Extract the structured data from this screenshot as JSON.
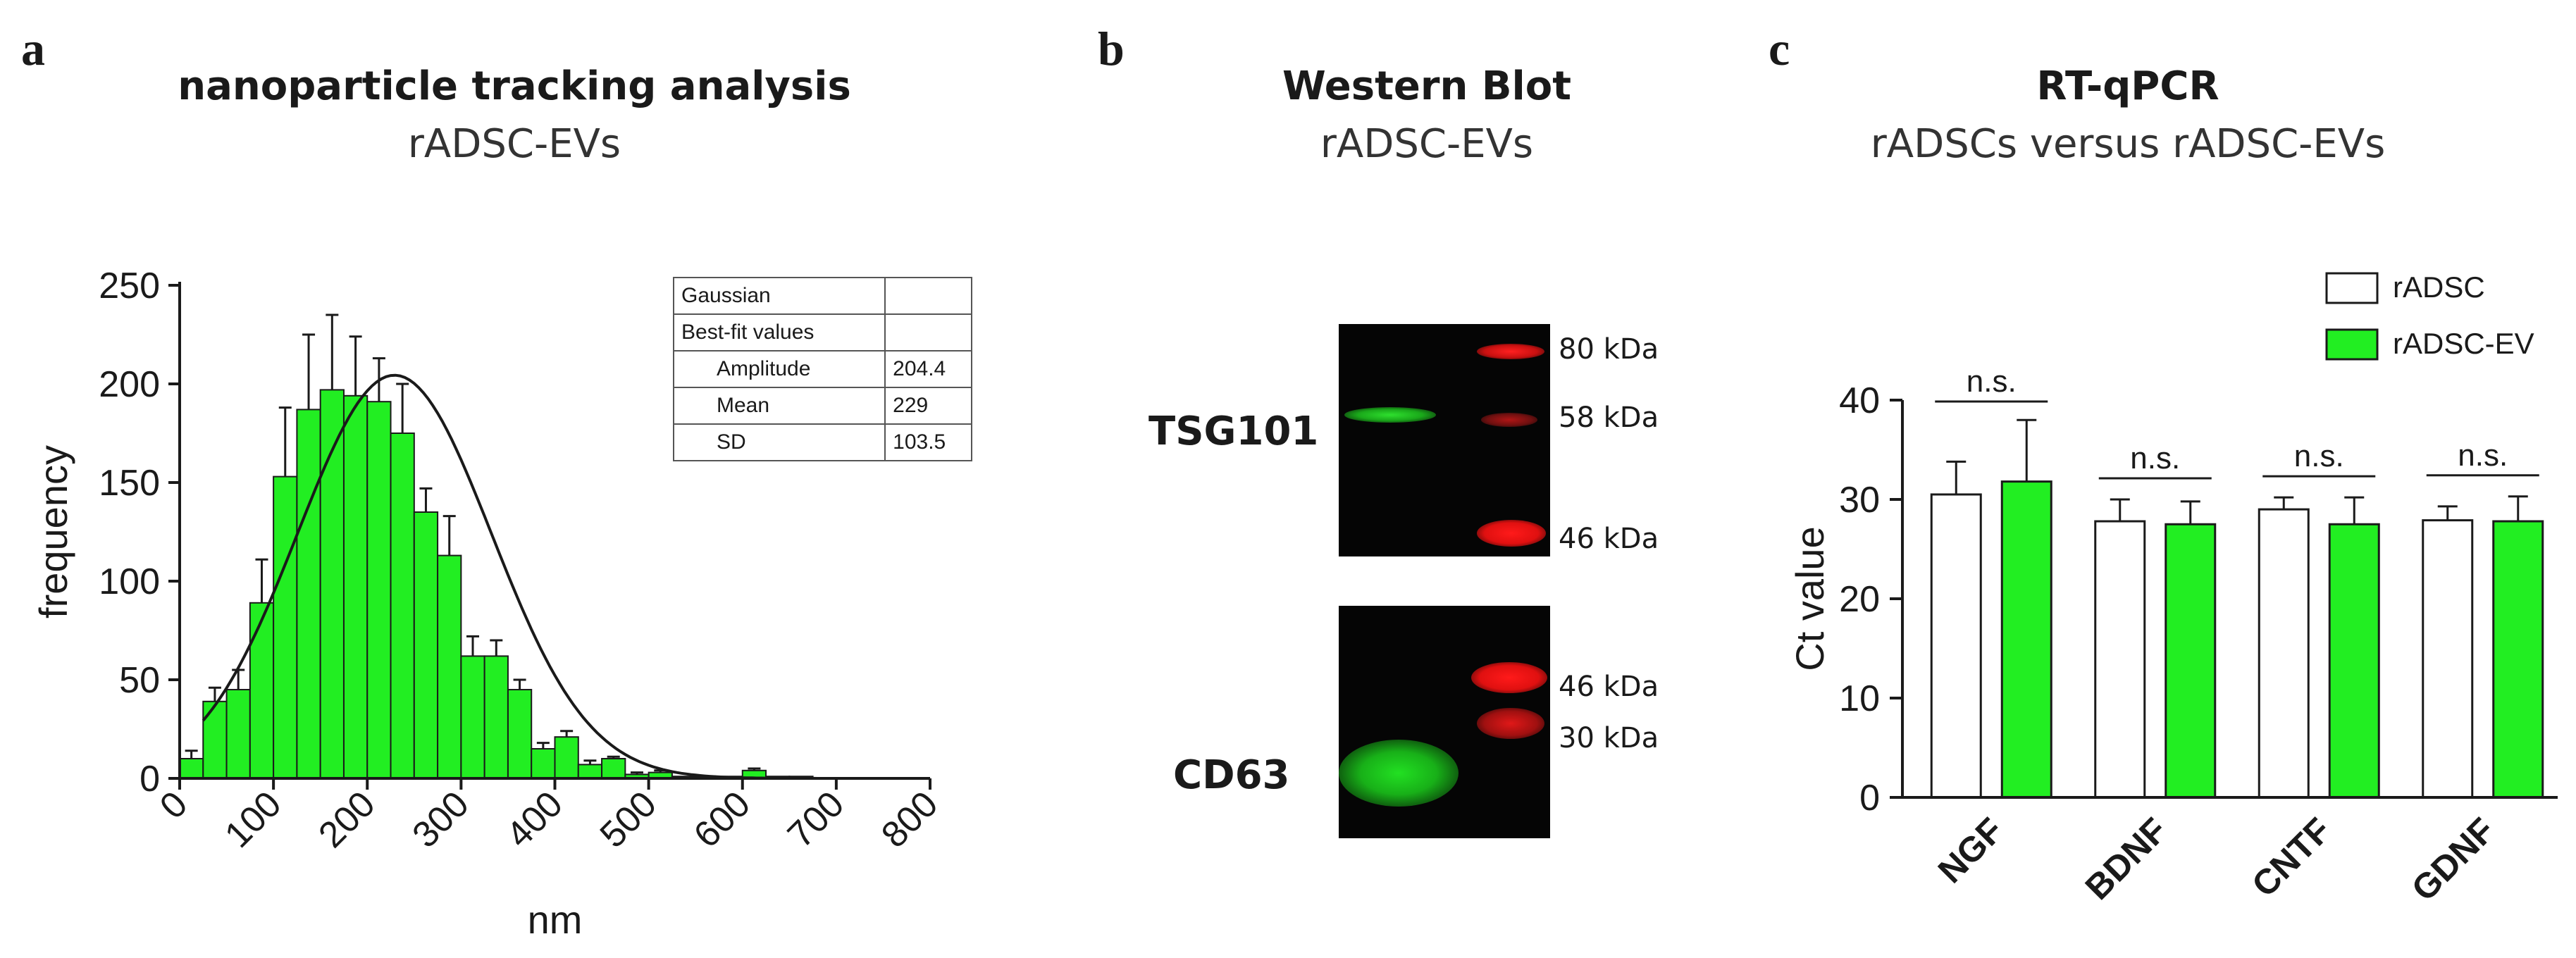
{
  "panel_a": {
    "letter": "a",
    "title": "nanoparticle tracking analysis",
    "subtitle": "rADSC-EVs",
    "fit_table": {
      "rows": [
        [
          "Gaussian",
          ""
        ],
        [
          "Best-fit values",
          ""
        ],
        [
          "Amplitude",
          "204.4"
        ],
        [
          "Mean",
          "229"
        ],
        [
          "SD",
          "103.5"
        ]
      ]
    },
    "colors": {
      "bar": "#22ee22",
      "curve": "#1a1a1a"
    }
  },
  "panel_b": {
    "letter": "b",
    "title": "Western Blot",
    "subtitle": "rADSC-EVs",
    "blots": [
      {
        "protein": "TSG101",
        "markers": [
          "80 kDa",
          "58 kDa",
          "46 kDa"
        ]
      },
      {
        "protein": "CD63",
        "markers": [
          "46 kDa",
          "30 kDa"
        ]
      }
    ],
    "colors": {
      "green": "#22dd22",
      "red": "#ff1a1a"
    }
  },
  "panel_c": {
    "letter": "c",
    "title": "RT-qPCR",
    "subtitle": "rADSCs versus rADSC-EVs",
    "significance": [
      "n.s.",
      "n.s.",
      "n.s.",
      "n.s."
    ],
    "colors": {
      "rADSC": "#ffffff",
      "rADSC-EV": "#22ee22"
    }
  },
  "chart_data": [
    {
      "type": "bar",
      "title": "nanoparticle tracking analysis",
      "subtitle": "rADSC-EVs",
      "xlabel": "nm",
      "ylabel": "frequency",
      "xlim": [
        0,
        800
      ],
      "ylim": [
        0,
        250
      ],
      "xticks": [
        "0",
        "100",
        "200",
        "300",
        "400",
        "500",
        "600",
        "700",
        "800"
      ],
      "yticks": [
        "0",
        "50",
        "100",
        "150",
        "200",
        "250"
      ],
      "bin_width": 25,
      "x": [
        12.5,
        37.5,
        62.5,
        87.5,
        112.5,
        137.5,
        162.5,
        187.5,
        212.5,
        237.5,
        262.5,
        287.5,
        312.5,
        337.5,
        362.5,
        387.5,
        412.5,
        437.5,
        462.5,
        487.5,
        512.5,
        537.5,
        562.5,
        587.5,
        612.5,
        637.5,
        662.5,
        687.5,
        712.5,
        737.5,
        762.5
      ],
      "values": [
        10,
        39,
        45,
        89,
        153,
        187,
        197,
        194,
        191,
        175,
        135,
        113,
        62,
        62,
        45,
        15,
        21,
        7,
        10,
        2,
        3,
        1,
        1,
        1,
        4,
        1,
        1,
        0,
        0,
        0,
        0
      ],
      "errors": [
        4,
        7,
        10,
        22,
        35,
        38,
        38,
        30,
        22,
        25,
        12,
        20,
        10,
        8,
        5,
        3,
        3,
        2,
        1,
        1,
        1,
        0,
        0,
        0,
        1,
        0,
        0,
        0,
        0,
        0,
        0
      ],
      "fit": {
        "type": "gaussian",
        "amplitude": 204.4,
        "mean": 229,
        "sd": 103.5
      },
      "grid": false
    },
    {
      "type": "bar",
      "title": "RT-qPCR",
      "subtitle": "rADSCs versus rADSC-EVs",
      "xlabel": "",
      "ylabel": "Ct value",
      "categories": [
        "NGF",
        "BDNF",
        "CNTF",
        "GDNF"
      ],
      "ylim": [
        0,
        40
      ],
      "yticks": [
        "0",
        "10",
        "20",
        "30",
        "40"
      ],
      "series": [
        {
          "name": "rADSC",
          "values": [
            30.5,
            27.8,
            29.0,
            27.9
          ],
          "errors": [
            3.3,
            2.2,
            1.2,
            1.4
          ]
        },
        {
          "name": "rADSC-EV",
          "values": [
            31.8,
            27.5,
            27.5,
            27.8
          ],
          "errors": [
            6.2,
            2.3,
            2.7,
            2.5
          ]
        }
      ],
      "legend": "top-right",
      "grid": false
    }
  ]
}
